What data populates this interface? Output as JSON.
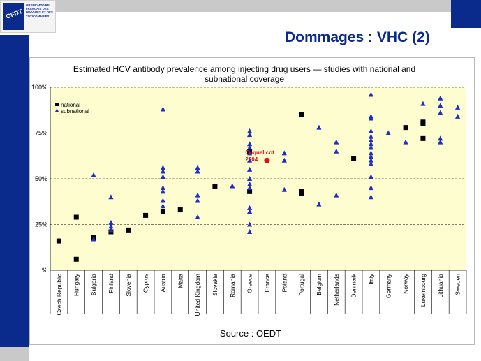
{
  "logo": {
    "abbr": "OFDT",
    "lines": [
      "OBSERVATOIRE",
      "FRANÇAIS DES",
      "DROGUES ET DES",
      "TOXICOMANIES"
    ]
  },
  "slide": {
    "title": "Dommages : VHC (2)"
  },
  "chart_data": {
    "type": "scatter",
    "title": "Estimated HCV antibody prevalence among injecting drug users — studies with national and subnational coverage",
    "title_lines": [
      "Estimated HCV antibody prevalence among injecting drug users — studies with national and",
      "subnational coverage"
    ],
    "ylim": [
      0,
      100
    ],
    "yticks": [
      0,
      25,
      50,
      75,
      100
    ],
    "ytick_labels": [
      "%",
      "25%",
      "50%",
      "75%",
      "100%"
    ],
    "categories": [
      "Czech Republic",
      "Hungary",
      "Bulgaria",
      "Finland",
      "Slovenia",
      "Cyprus",
      "Austria",
      "Malta",
      "United Kingdom",
      "Slovakia",
      "Romania",
      "Greece",
      "France",
      "Poland",
      "Portugal",
      "Belgium",
      "Netherlands",
      "Denmark",
      "Italy",
      "Germany",
      "Norway",
      "Luxembourg",
      "Lithuania",
      "Sweden"
    ],
    "legend": {
      "position": "top-left",
      "entries": [
        "national",
        "subnational"
      ]
    },
    "series": [
      {
        "name": "national",
        "marker": "square",
        "color": "#000000",
        "points": [
          {
            "category": "Czech Republic",
            "value": 16
          },
          {
            "category": "Hungary",
            "value": 29
          },
          {
            "category": "Hungary",
            "value": 6
          },
          {
            "category": "Bulgaria",
            "value": 18
          },
          {
            "category": "Finland",
            "value": 21
          },
          {
            "category": "Slovenia",
            "value": 22
          },
          {
            "category": "Cyprus",
            "value": 30
          },
          {
            "category": "Austria",
            "value": 32
          },
          {
            "category": "Malta",
            "value": 33
          },
          {
            "category": "Slovakia",
            "value": 46
          },
          {
            "category": "Greece",
            "value": 43
          },
          {
            "category": "Greece",
            "value": 65
          },
          {
            "category": "Portugal",
            "value": 85
          },
          {
            "category": "Portugal",
            "value": 43
          },
          {
            "category": "Portugal",
            "value": 42
          },
          {
            "category": "Denmark",
            "value": 61
          },
          {
            "category": "Norway",
            "value": 78
          },
          {
            "category": "Luxembourg",
            "value": 81
          },
          {
            "category": "Luxembourg",
            "value": 80
          },
          {
            "category": "Luxembourg",
            "value": 72
          }
        ]
      },
      {
        "name": "subnational",
        "marker": "triangle",
        "color": "#1f2fc0",
        "points": [
          {
            "category": "Bulgaria",
            "value": 52
          },
          {
            "category": "Bulgaria",
            "value": 17
          },
          {
            "category": "Finland",
            "value": 40
          },
          {
            "category": "Finland",
            "value": 26
          },
          {
            "category": "Finland",
            "value": 24
          },
          {
            "category": "Finland",
            "value": 22
          },
          {
            "category": "Austria",
            "value": 88
          },
          {
            "category": "Austria",
            "value": 56
          },
          {
            "category": "Austria",
            "value": 54
          },
          {
            "category": "Austria",
            "value": 51
          },
          {
            "category": "Austria",
            "value": 45
          },
          {
            "category": "Austria",
            "value": 43
          },
          {
            "category": "Austria",
            "value": 38
          },
          {
            "category": "Austria",
            "value": 35
          },
          {
            "category": "United Kingdom",
            "value": 56
          },
          {
            "category": "United Kingdom",
            "value": 54
          },
          {
            "category": "United Kingdom",
            "value": 41
          },
          {
            "category": "United Kingdom",
            "value": 38
          },
          {
            "category": "United Kingdom",
            "value": 29
          },
          {
            "category": "Romania",
            "value": 46
          },
          {
            "category": "Greece",
            "value": 76
          },
          {
            "category": "Greece",
            "value": 74
          },
          {
            "category": "Greece",
            "value": 69
          },
          {
            "category": "Greece",
            "value": 67
          },
          {
            "category": "Greece",
            "value": 64
          },
          {
            "category": "Greece",
            "value": 60
          },
          {
            "category": "Greece",
            "value": 55
          },
          {
            "category": "Greece",
            "value": 50
          },
          {
            "category": "Greece",
            "value": 47
          },
          {
            "category": "Greece",
            "value": 45
          },
          {
            "category": "Greece",
            "value": 34
          },
          {
            "category": "Greece",
            "value": 32
          },
          {
            "category": "Greece",
            "value": 25
          },
          {
            "category": "Greece",
            "value": 21
          },
          {
            "category": "Poland",
            "value": 64
          },
          {
            "category": "Poland",
            "value": 60
          },
          {
            "category": "Poland",
            "value": 44
          },
          {
            "category": "Belgium",
            "value": 78
          },
          {
            "category": "Belgium",
            "value": 36
          },
          {
            "category": "Netherlands",
            "value": 70
          },
          {
            "category": "Netherlands",
            "value": 65
          },
          {
            "category": "Netherlands",
            "value": 41
          },
          {
            "category": "Italy",
            "value": 96
          },
          {
            "category": "Italy",
            "value": 84
          },
          {
            "category": "Italy",
            "value": 83
          },
          {
            "category": "Italy",
            "value": 76
          },
          {
            "category": "Italy",
            "value": 73
          },
          {
            "category": "Italy",
            "value": 71
          },
          {
            "category": "Italy",
            "value": 69
          },
          {
            "category": "Italy",
            "value": 67
          },
          {
            "category": "Italy",
            "value": 64
          },
          {
            "category": "Italy",
            "value": 62
          },
          {
            "category": "Italy",
            "value": 60
          },
          {
            "category": "Italy",
            "value": 58
          },
          {
            "category": "Italy",
            "value": 51
          },
          {
            "category": "Italy",
            "value": 45
          },
          {
            "category": "Italy",
            "value": 40
          },
          {
            "category": "Germany",
            "value": 75
          },
          {
            "category": "Norway",
            "value": 70
          },
          {
            "category": "Luxembourg",
            "value": 91
          },
          {
            "category": "Lithuania",
            "value": 94
          },
          {
            "category": "Lithuania",
            "value": 90
          },
          {
            "category": "Lithuania",
            "value": 86
          },
          {
            "category": "Lithuania",
            "value": 72
          },
          {
            "category": "Lithuania",
            "value": 70
          },
          {
            "category": "Sweden",
            "value": 89
          },
          {
            "category": "Sweden",
            "value": 84
          }
        ]
      }
    ],
    "highlight": {
      "category": "France",
      "value": 60,
      "label_lines": [
        "Coquelicot",
        "2004"
      ],
      "color": "#e01010"
    },
    "source": "Source : OEDT"
  }
}
